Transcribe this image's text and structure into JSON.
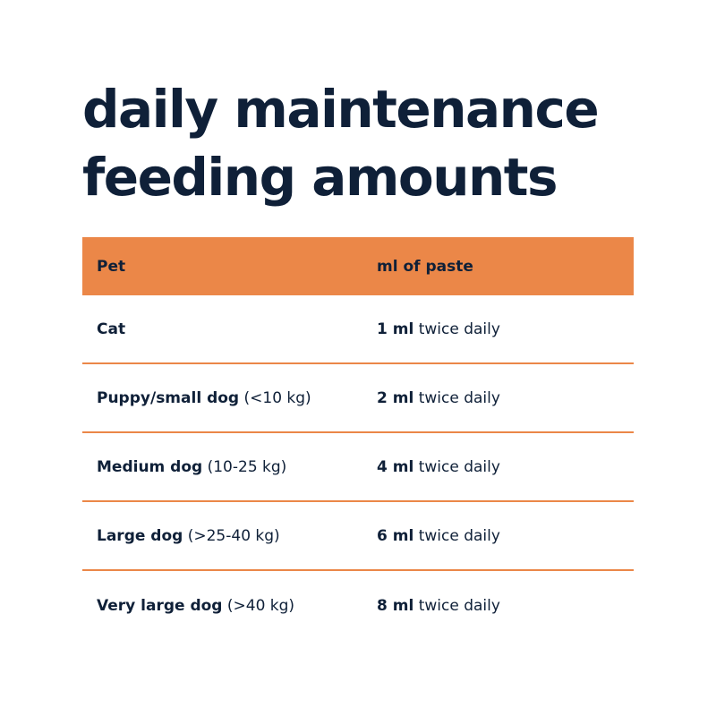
{
  "title": {
    "line1": "daily maintenance",
    "line2": "feeding amounts"
  },
  "table": {
    "headers": {
      "pet": "Pet",
      "ml": "ml of paste"
    },
    "rows": [
      {
        "pet": "Cat",
        "weight": "",
        "amount": "1 ml",
        "frequency": "twice daily"
      },
      {
        "pet": "Puppy/small dog",
        "weight": "(<10 kg)",
        "amount": "2 ml",
        "frequency": "twice daily"
      },
      {
        "pet": "Medium dog",
        "weight": "(10-25 kg)",
        "amount": "4 ml",
        "frequency": "twice daily"
      },
      {
        "pet": "Large dog",
        "weight": "(>25-40 kg)",
        "amount": "6 ml",
        "frequency": "twice daily"
      },
      {
        "pet": "Very large dog",
        "weight": "(>40 kg)",
        "amount": "8 ml",
        "frequency": "twice daily"
      }
    ]
  },
  "colors": {
    "accent": "#eb8748",
    "text": "#0f2038",
    "background": "#ffffff"
  }
}
